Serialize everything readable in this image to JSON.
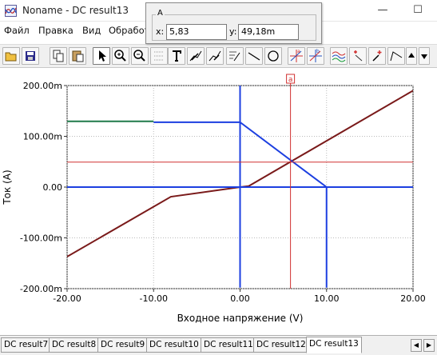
{
  "window": {
    "title": "Noname - DC result13",
    "minimize": "—",
    "maximize": "☐"
  },
  "menu": {
    "items": [
      "Файл",
      "Правка",
      "Вид",
      "Обработ"
    ]
  },
  "coord_popup": {
    "group": "A",
    "x_label": "x:",
    "x_value": "5,83",
    "y_label": "y:",
    "y_value": "49,18m"
  },
  "toolbar": {
    "icons": [
      "open-icon",
      "save-icon",
      "copy-icon",
      "paste-icon",
      "pointer-icon",
      "zoom-in-icon",
      "zoom-out-icon",
      "grid-icon",
      "text-icon",
      "marker-a-icon",
      "marker-b-icon",
      "draw-icon",
      "line-icon",
      "circle-icon",
      "cursor-a-icon",
      "cursor-b-icon",
      "waves-icon",
      "pick-icon",
      "add-pick-icon",
      "slope-icon",
      "up-icon",
      "down-icon"
    ]
  },
  "tabs": [
    "DC result7",
    "DC result8",
    "DC result9",
    "DC result10",
    "DC result11",
    "DC result12",
    "DC result13"
  ],
  "active_tab": "DC result13",
  "colors": {
    "dark_red": "#7a1a1a",
    "blue": "#1c3fe0",
    "green": "#1f7a4a",
    "cursor": "#d03030"
  },
  "chart_data": {
    "type": "line",
    "xlabel": "Входное напряжение (V)",
    "ylabel": "Ток (A)",
    "xlim": [
      -20,
      20
    ],
    "ylim": [
      -0.2,
      0.2
    ],
    "x_ticks": [
      -20,
      -10,
      0,
      10,
      20
    ],
    "x_tick_labels": [
      "-20.00",
      "-10.00",
      "0.00",
      "10.00",
      "20.00"
    ],
    "y_ticks": [
      0.2,
      0.1,
      0,
      -0.1,
      -0.2
    ],
    "y_tick_labels": [
      "200.00m",
      "100.00m",
      "0.00",
      "-100.00m",
      "-200.00m"
    ],
    "grid": true,
    "cursor": {
      "label": "a",
      "x": 5.83,
      "y": 0.04918
    },
    "series": [
      {
        "color": "#7a1a1a",
        "points": [
          [
            -20,
            -0.137
          ],
          [
            -8,
            -0.019
          ],
          [
            0,
            0
          ],
          [
            1,
            0.002
          ],
          [
            20,
            0.19
          ]
        ]
      },
      {
        "color": "#1f7a4a",
        "points": [
          [
            -20,
            0.1295
          ],
          [
            -10,
            0.1295
          ]
        ]
      },
      {
        "color": "#1c3fe0",
        "points": [
          [
            -10,
            0.1278
          ],
          [
            0,
            0.1278
          ],
          [
            10,
            0
          ],
          [
            10,
            -0.198
          ]
        ]
      },
      {
        "color": "#1c3fe0",
        "points": [
          [
            -20,
            0
          ],
          [
            20,
            0
          ]
        ]
      },
      {
        "color": "#1c3fe0",
        "points": [
          [
            0,
            0.2
          ],
          [
            0,
            -0.198
          ]
        ]
      }
    ]
  }
}
